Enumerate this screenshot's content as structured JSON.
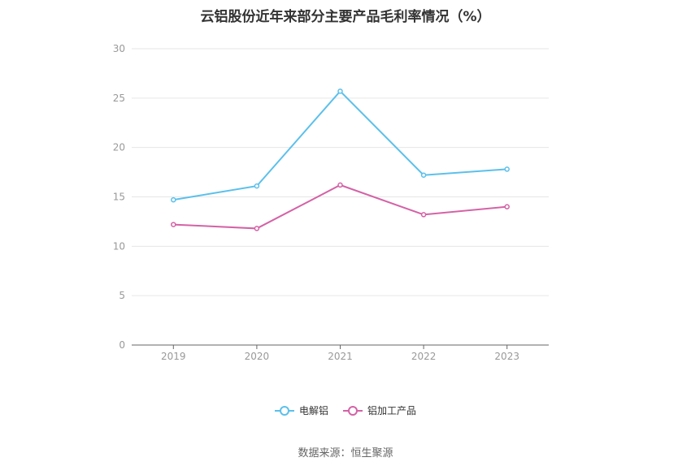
{
  "source_text": "数据来源：恒生聚源",
  "chart_data": {
    "type": "line",
    "title": "云铝股份近年来部分主要产品毛利率情况（%）",
    "categories": [
      "2019",
      "2020",
      "2021",
      "2022",
      "2023"
    ],
    "ylim": [
      0,
      30
    ],
    "yticks": [
      0,
      5,
      10,
      15,
      20,
      25,
      30
    ],
    "grid": true,
    "legend_position": "bottom",
    "series": [
      {
        "name": "电解铝",
        "color": "#5bc0eb",
        "values": [
          14.7,
          16.1,
          25.7,
          17.2,
          17.8
        ]
      },
      {
        "name": "铝加工产品",
        "color": "#d462a6",
        "values": [
          12.2,
          11.8,
          16.2,
          13.2,
          14.0
        ]
      }
    ]
  }
}
